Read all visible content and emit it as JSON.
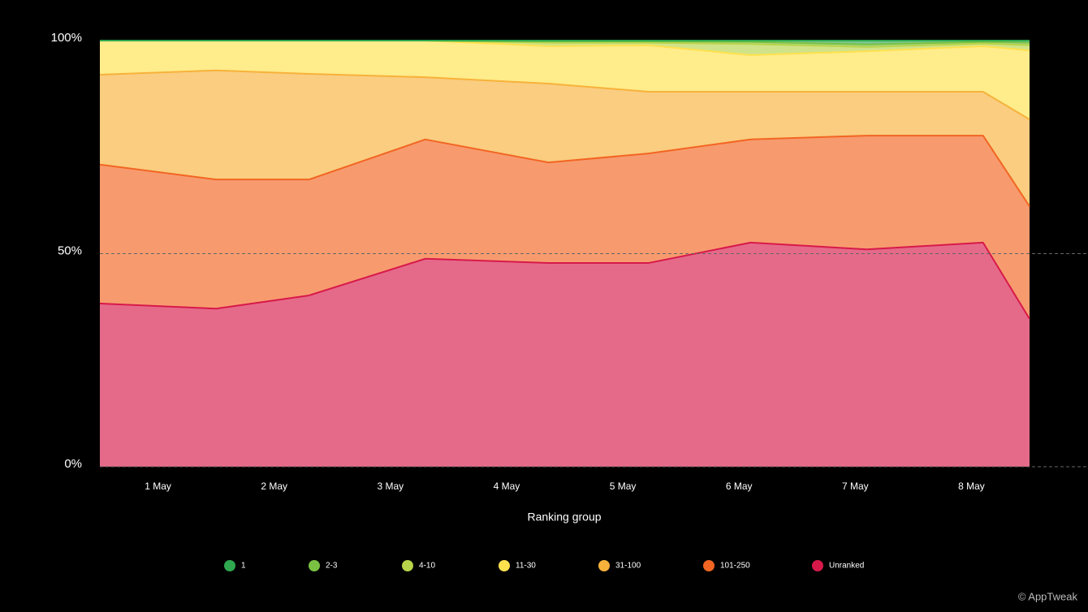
{
  "chart_data": {
    "type": "stacked-area",
    "xlabel": "Ranking group",
    "x": [
      0,
      1,
      1.8,
      2.8,
      3.86,
      4.72,
      5.6,
      6.6,
      7.6,
      8
    ],
    "xlim": [
      0,
      8
    ],
    "xticks": [
      {
        "value": 0.5,
        "label": "1 May"
      },
      {
        "value": 1.5,
        "label": "2 May"
      },
      {
        "value": 2.5,
        "label": "3 May"
      },
      {
        "value": 3.5,
        "label": "4 May"
      },
      {
        "value": 4.5,
        "label": "5 May"
      },
      {
        "value": 5.5,
        "label": "6 May"
      },
      {
        "value": 6.5,
        "label": "7 May"
      },
      {
        "value": 7.5,
        "label": "8 May"
      }
    ],
    "ylim": [
      0,
      100
    ],
    "yticks": [
      {
        "value": 0,
        "label": "0%"
      },
      {
        "value": 50,
        "label": "50%"
      },
      {
        "value": 100,
        "label": "100%"
      }
    ],
    "grid": true,
    "legend": "bottom",
    "series": [
      {
        "name": "1",
        "color": "#2fa84f",
        "values": [
          0,
          0,
          0,
          0,
          0.2,
          0.2,
          0.3,
          0.9,
          0.3,
          0.5
        ]
      },
      {
        "name": "2-3",
        "color": "#7ac143",
        "values": [
          0,
          0,
          0,
          0,
          0.3,
          0.3,
          0.5,
          0.6,
          0.4,
          0.6
        ]
      },
      {
        "name": "4-10",
        "color": "#b8d44a",
        "values": [
          0,
          0,
          0,
          0,
          0.8,
          0.6,
          2.6,
          1.0,
          0.6,
          1.2
        ]
      },
      {
        "name": "11-30",
        "color": "#ffe14d",
        "values": [
          8,
          7,
          7.8,
          8.6,
          8.8,
          10.9,
          8.6,
          9.5,
          10.7,
          16.2
        ]
      },
      {
        "name": "31-100",
        "color": "#f7b23b",
        "values": [
          21.1,
          25.6,
          24.8,
          14.6,
          18.5,
          14.5,
          11.2,
          10.3,
          10.3,
          20.4
        ]
      },
      {
        "name": "101-250",
        "color": "#f26522",
        "values": [
          32.6,
          30.3,
          27.2,
          28.0,
          23.6,
          25.7,
          24.2,
          26.7,
          25.1,
          26.4
        ]
      },
      {
        "name": "Unranked",
        "color": "#d7194a",
        "values": [
          38.3,
          37.1,
          40.2,
          48.8,
          47.8,
          47.8,
          52.6,
          51.0,
          52.6,
          34.7
        ]
      }
    ],
    "credit": "© AppTweak"
  }
}
